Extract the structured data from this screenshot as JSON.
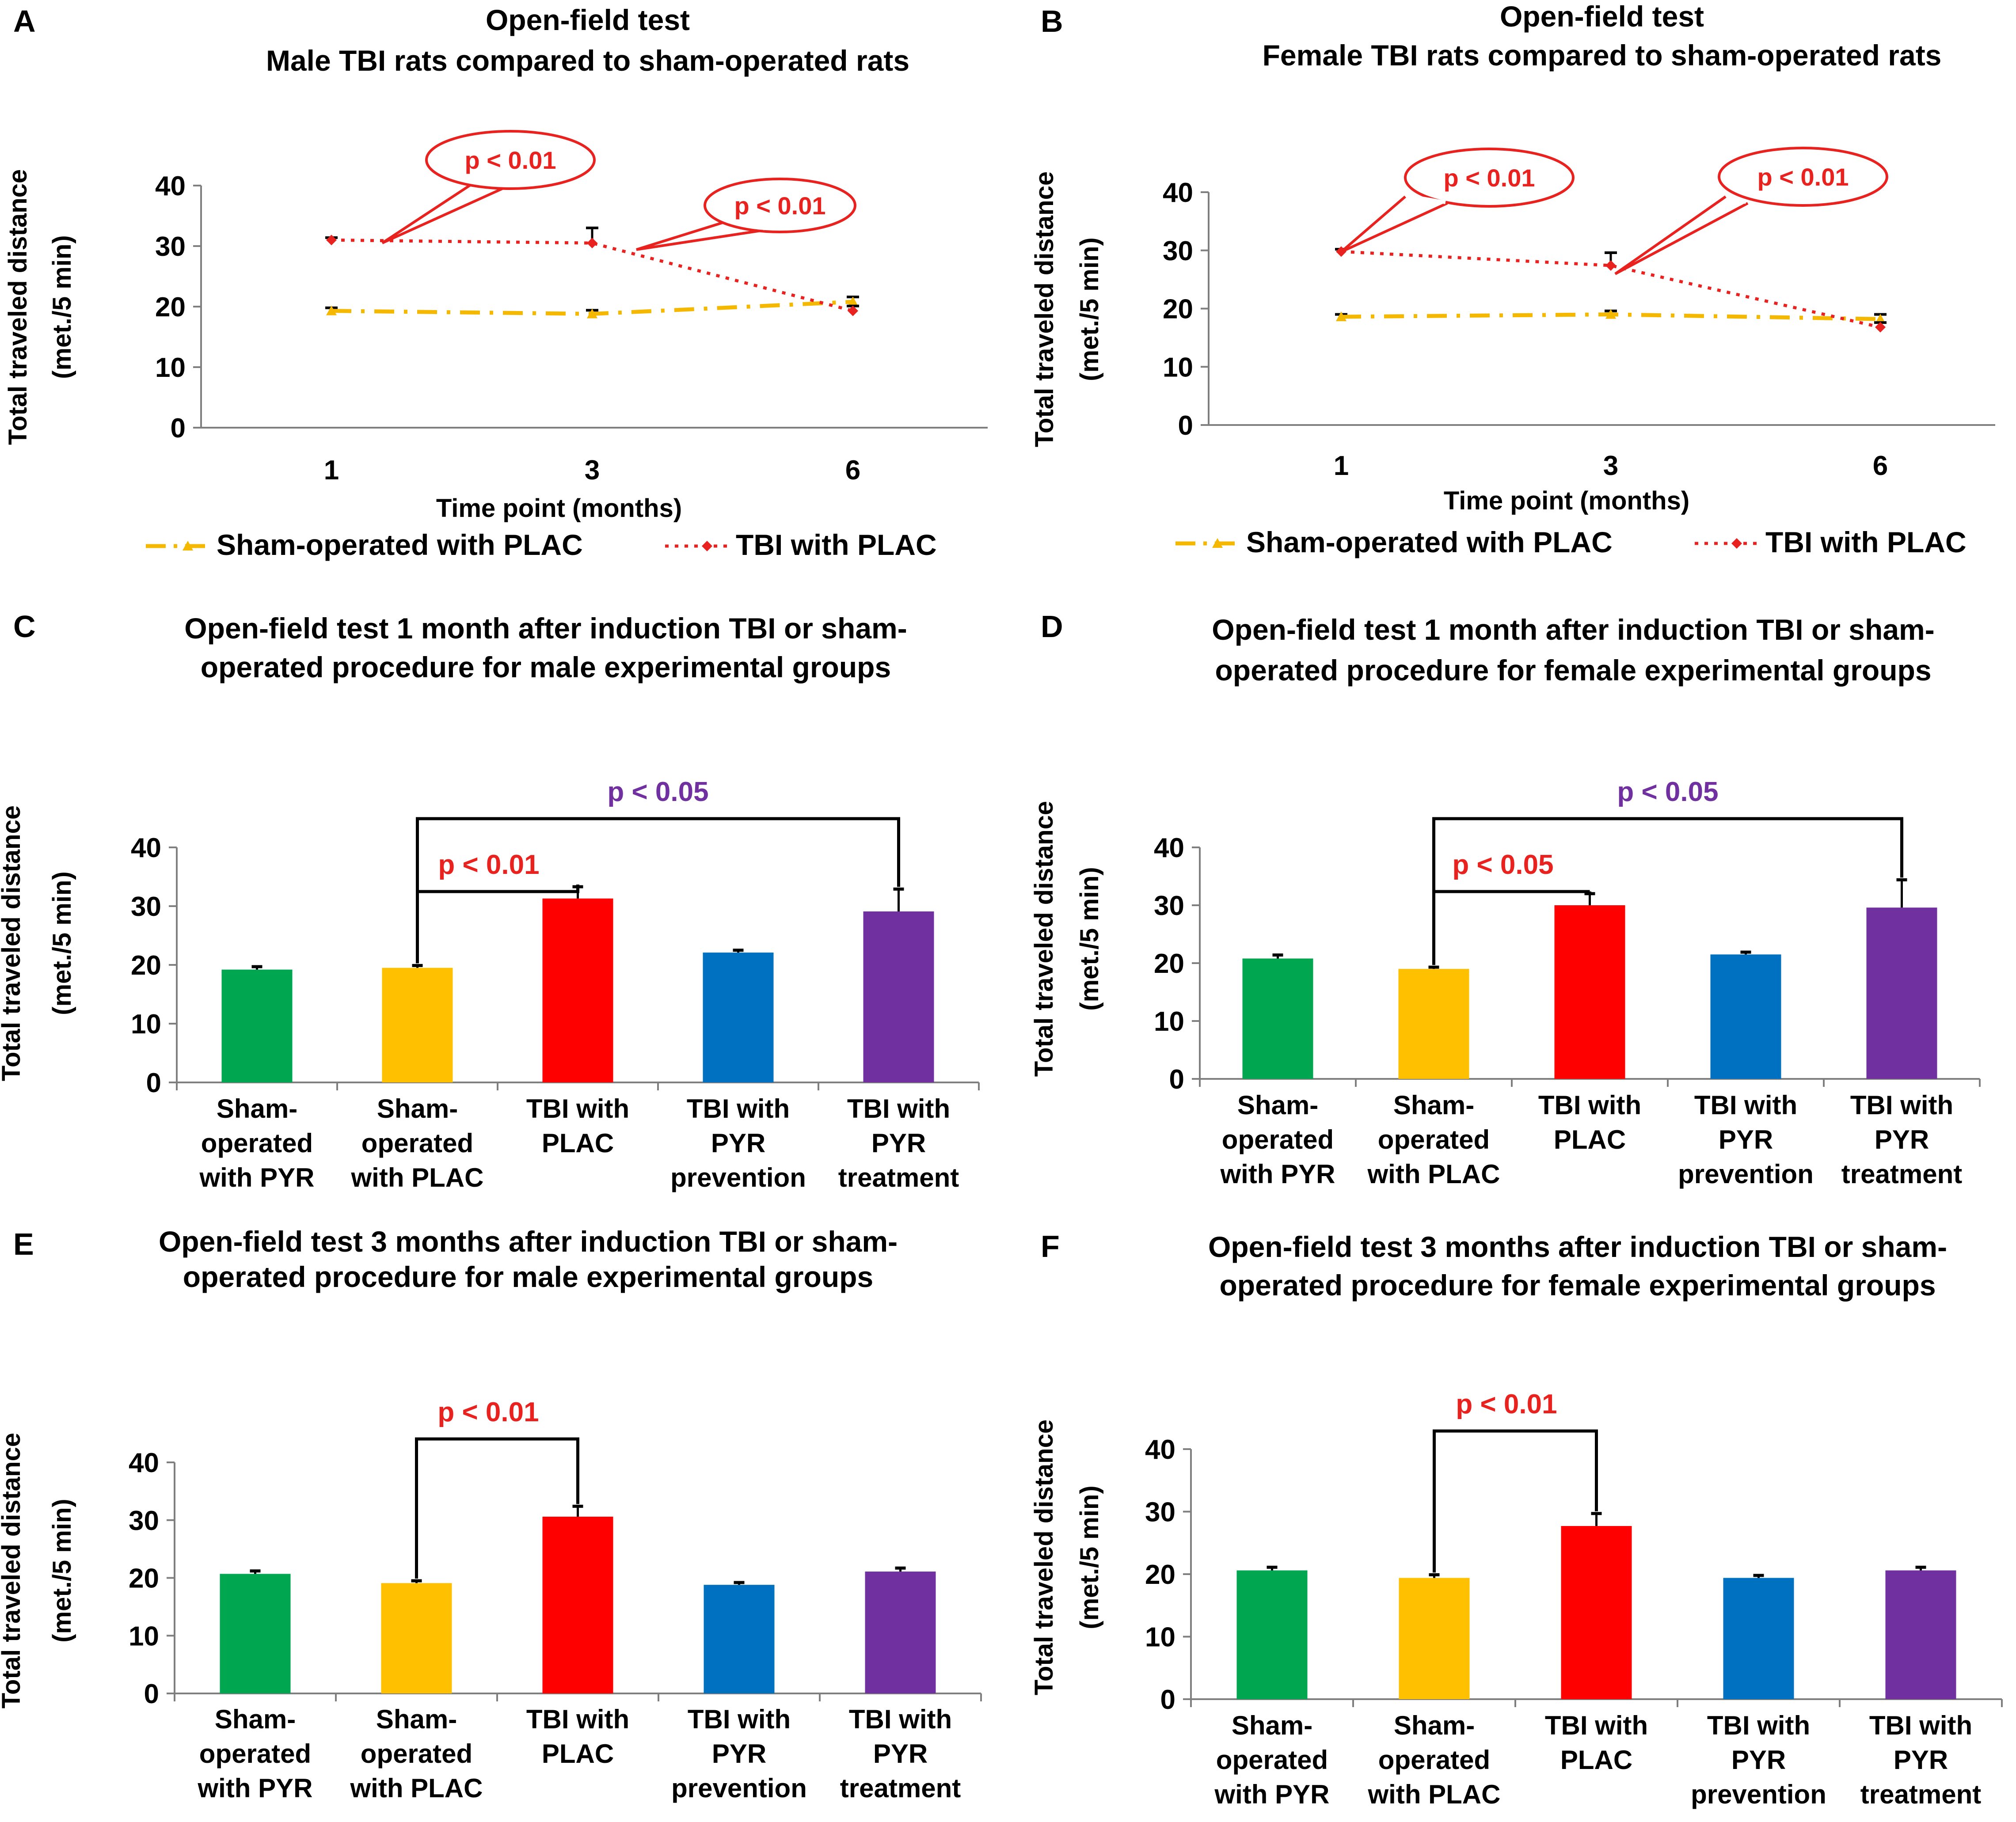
{
  "colors": {
    "sham_line": "#F5B800",
    "tbi_line": "#E8231F",
    "green": "#00A650",
    "yellow": "#FFC000",
    "red": "#FF0000",
    "blue": "#0070C0",
    "purple": "#7030A0",
    "sig_red": "#E8231F",
    "sig_purple": "#7030A0",
    "axis": "#7f7f7f"
  },
  "chart_data": [
    {
      "panel": "A",
      "type": "line",
      "title": [
        "Open-field test",
        "Male TBI rats compared to sham-operated rats"
      ],
      "xlabel": "Time point (months)",
      "ylabel": [
        "Total traveled distance",
        "(met./5 min)"
      ],
      "categories": [
        "1",
        "3",
        "6"
      ],
      "yticks": [
        "0",
        "10",
        "20",
        "30",
        "40"
      ],
      "ylim": [
        0,
        40
      ],
      "series": [
        {
          "name": "Sham-operated with PLAC",
          "values": [
            19.3,
            18.8,
            20.8
          ],
          "errors": [
            0.5,
            0.6,
            0.8
          ]
        },
        {
          "name": "TBI with PLAC",
          "values": [
            31,
            30.5,
            19.3
          ],
          "errors": [
            0.4,
            2.5,
            0.8
          ]
        }
      ],
      "annotations": [
        "p < 0.01",
        "p < 0.01"
      ]
    },
    {
      "panel": "B",
      "type": "line",
      "title": [
        "Open-field test",
        "Female TBI rats compared to sham-operated rats"
      ],
      "xlabel": "Time point (months)",
      "ylabel": [
        "Total traveled distance",
        "(met./5 min)"
      ],
      "categories": [
        "1",
        "3",
        "6"
      ],
      "yticks": [
        "0",
        "10",
        "20",
        "30",
        "40"
      ],
      "ylim": [
        0,
        40
      ],
      "series": [
        {
          "name": "Sham-operated with PLAC",
          "values": [
            18.6,
            19.0,
            18.2
          ],
          "errors": [
            0.4,
            0.6,
            0.8
          ]
        },
        {
          "name": "TBI with PLAC",
          "values": [
            29.8,
            27.4,
            16.8
          ],
          "errors": [
            0.4,
            2.2,
            0.8
          ]
        }
      ],
      "annotations": [
        "p < 0.01",
        "p < 0.01"
      ]
    },
    {
      "panel": "C",
      "type": "bar",
      "title": [
        "Open-field test 1 month after induction TBI or sham-",
        "operated procedure for  male experimental groups"
      ],
      "ylabel": [
        "Total traveled distance",
        "(met./5 min)"
      ],
      "categories": [
        [
          "Sham-",
          "operated",
          "with PYR"
        ],
        [
          "Sham-",
          "operated",
          "with PLAC"
        ],
        [
          "TBI with",
          "PLAC"
        ],
        [
          "TBI with",
          "PYR",
          "prevention"
        ],
        [
          "TBI with",
          "PYR",
          "treatment"
        ]
      ],
      "values": [
        19.2,
        19.5,
        31.3,
        22.1,
        29.1
      ],
      "errors": [
        0.5,
        0.4,
        2.0,
        0.4,
        3.8
      ],
      "yticks": [
        "0",
        "10",
        "20",
        "30",
        "40"
      ],
      "ylim": [
        0,
        40
      ],
      "significance": [
        {
          "label": "p < 0.01",
          "from": 1,
          "to": 2,
          "color": "sig_red"
        },
        {
          "label": "p < 0.05",
          "from": 1,
          "to": 4,
          "color": "sig_purple"
        }
      ]
    },
    {
      "panel": "D",
      "type": "bar",
      "title": [
        "Open-field test 1 month after induction TBI or sham-",
        "operated procedure for  female experimental groups"
      ],
      "ylabel": [
        "Total traveled distance",
        "(met./5 min)"
      ],
      "categories": [
        [
          "Sham-",
          "operated",
          "with PYR"
        ],
        [
          "Sham-",
          "operated",
          "with PLAC"
        ],
        [
          "TBI with",
          "PLAC"
        ],
        [
          "TBI with",
          "PYR",
          "prevention"
        ],
        [
          "TBI with",
          "PYR",
          "treatment"
        ]
      ],
      "values": [
        20.8,
        19.0,
        30.0,
        21.5,
        29.6
      ],
      "errors": [
        0.6,
        0.3,
        2.0,
        0.4,
        4.8
      ],
      "yticks": [
        "0",
        "10",
        "20",
        "30",
        "40"
      ],
      "ylim": [
        0,
        40
      ],
      "significance": [
        {
          "label": "p < 0.05",
          "from": 1,
          "to": 2,
          "color": "sig_red"
        },
        {
          "label": "p < 0.05",
          "from": 1,
          "to": 4,
          "color": "sig_purple"
        }
      ]
    },
    {
      "panel": "E",
      "type": "bar",
      "title": [
        "Open-field test 3 months after induction TBI or sham-",
        "operated procedure for  male experimental groups"
      ],
      "ylabel": [
        "Total traveled distance",
        "(met./5 min)"
      ],
      "categories": [
        [
          "Sham-",
          "operated",
          "with PYR"
        ],
        [
          "Sham-",
          "operated",
          "with PLAC"
        ],
        [
          "TBI with",
          "PLAC"
        ],
        [
          "TBI with",
          "PYR",
          "prevention"
        ],
        [
          "TBI with",
          "PYR",
          "treatment"
        ]
      ],
      "values": [
        20.7,
        19.1,
        30.6,
        18.8,
        21.1
      ],
      "errors": [
        0.5,
        0.4,
        1.8,
        0.4,
        0.6
      ],
      "yticks": [
        "0",
        "10",
        "20",
        "30",
        "40"
      ],
      "ylim": [
        0,
        40
      ],
      "significance": [
        {
          "label": "p < 0.01",
          "from": 1,
          "to": 2,
          "color": "sig_red"
        }
      ]
    },
    {
      "panel": "F",
      "type": "bar",
      "title": [
        "Open-field test 3 months after induction TBI or sham-",
        "operated procedure for  female experimental groups"
      ],
      "ylabel": [
        "Total traveled distance",
        "(met./5 min)"
      ],
      "categories": [
        [
          "Sham-",
          "operated",
          "with PYR"
        ],
        [
          "Sham-",
          "operated",
          "with PLAC"
        ],
        [
          "TBI with",
          "PLAC"
        ],
        [
          "TBI with",
          "PYR",
          "prevention"
        ],
        [
          "TBI with",
          "PYR",
          "treatment"
        ]
      ],
      "values": [
        20.6,
        19.4,
        27.7,
        19.4,
        20.6
      ],
      "errors": [
        0.5,
        0.5,
        2.0,
        0.4,
        0.5
      ],
      "yticks": [
        "0",
        "10",
        "20",
        "30",
        "40"
      ],
      "ylim": [
        0,
        40
      ],
      "significance": [
        {
          "label": "p < 0.01",
          "from": 1,
          "to": 2,
          "color": "sig_red"
        }
      ]
    }
  ]
}
